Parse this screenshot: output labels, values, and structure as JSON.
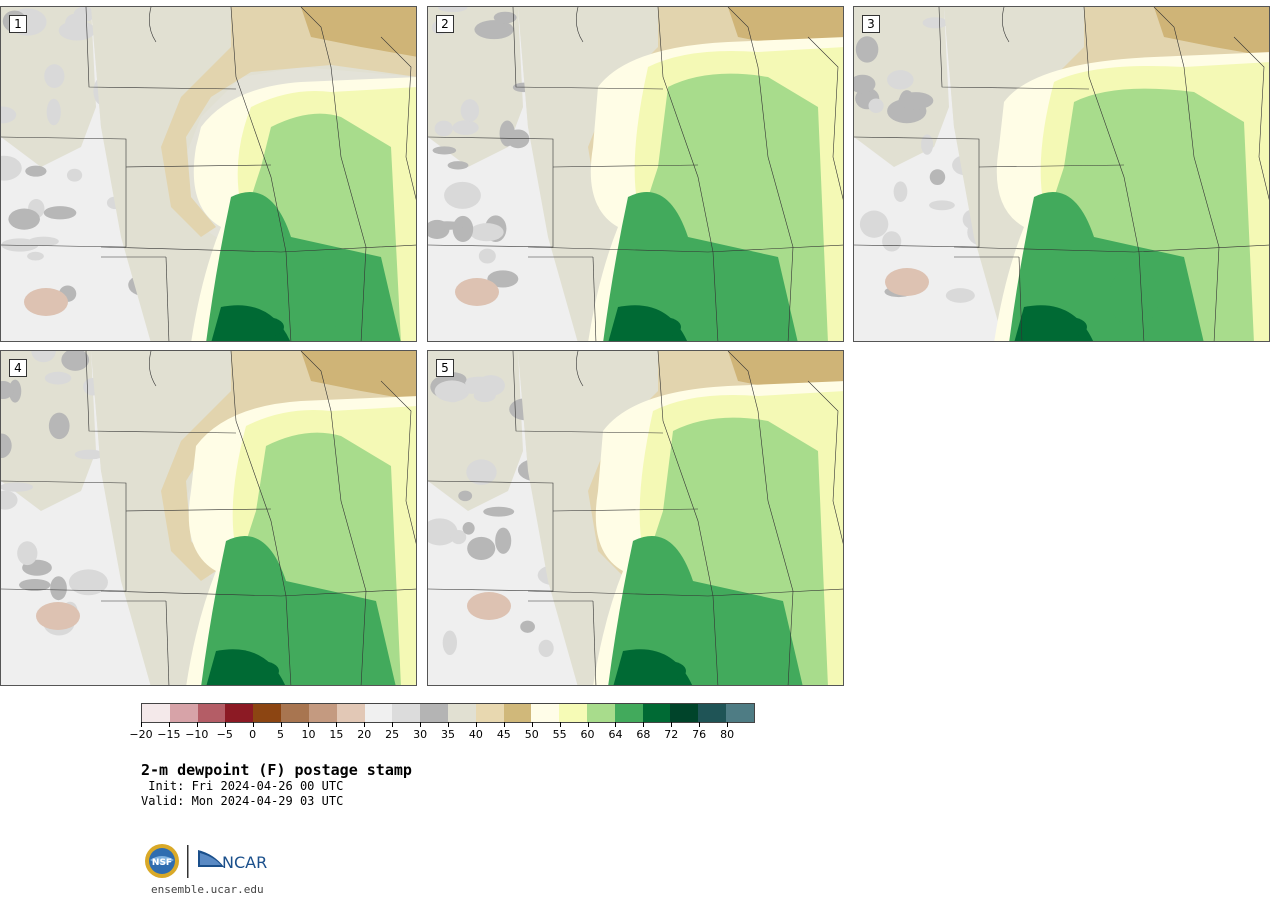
{
  "panels": [
    {
      "label": "1"
    },
    {
      "label": "2"
    },
    {
      "label": "3"
    },
    {
      "label": "4"
    },
    {
      "label": "5"
    }
  ],
  "colorbar": {
    "colors": [
      "#f4e9ea",
      "#d7a3a8",
      "#b45d66",
      "#8c1a24",
      "#8c4512",
      "#a87550",
      "#c49a80",
      "#e2c8b6",
      "#f0f0f0",
      "#dcdcdc",
      "#b4b4b4",
      "#e1e0d2",
      "#e8d8b0",
      "#d0b87a",
      "#fffde8",
      "#f6fbb6",
      "#a8dc8c",
      "#42aa5c",
      "#006a34",
      "#00442a",
      "#1f5456",
      "#4e7c84"
    ],
    "ticks": [
      "−20",
      "−15",
      "−10",
      "−5",
      "0",
      "5",
      "10",
      "15",
      "20",
      "25",
      "30",
      "35",
      "40",
      "45",
      "50",
      "55",
      "60",
      "64",
      "68",
      "72",
      "76",
      "80"
    ]
  },
  "title": "2-m dewpoint (F) postage stamp",
  "init": " Init: Fri 2024-04-26 00 UTC",
  "valid": "Valid: Mon 2024-04-29 03 UTC",
  "logos": {
    "nsf": "NSF",
    "ncar": "NCAR"
  },
  "site": "ensemble.ucar.edu"
}
